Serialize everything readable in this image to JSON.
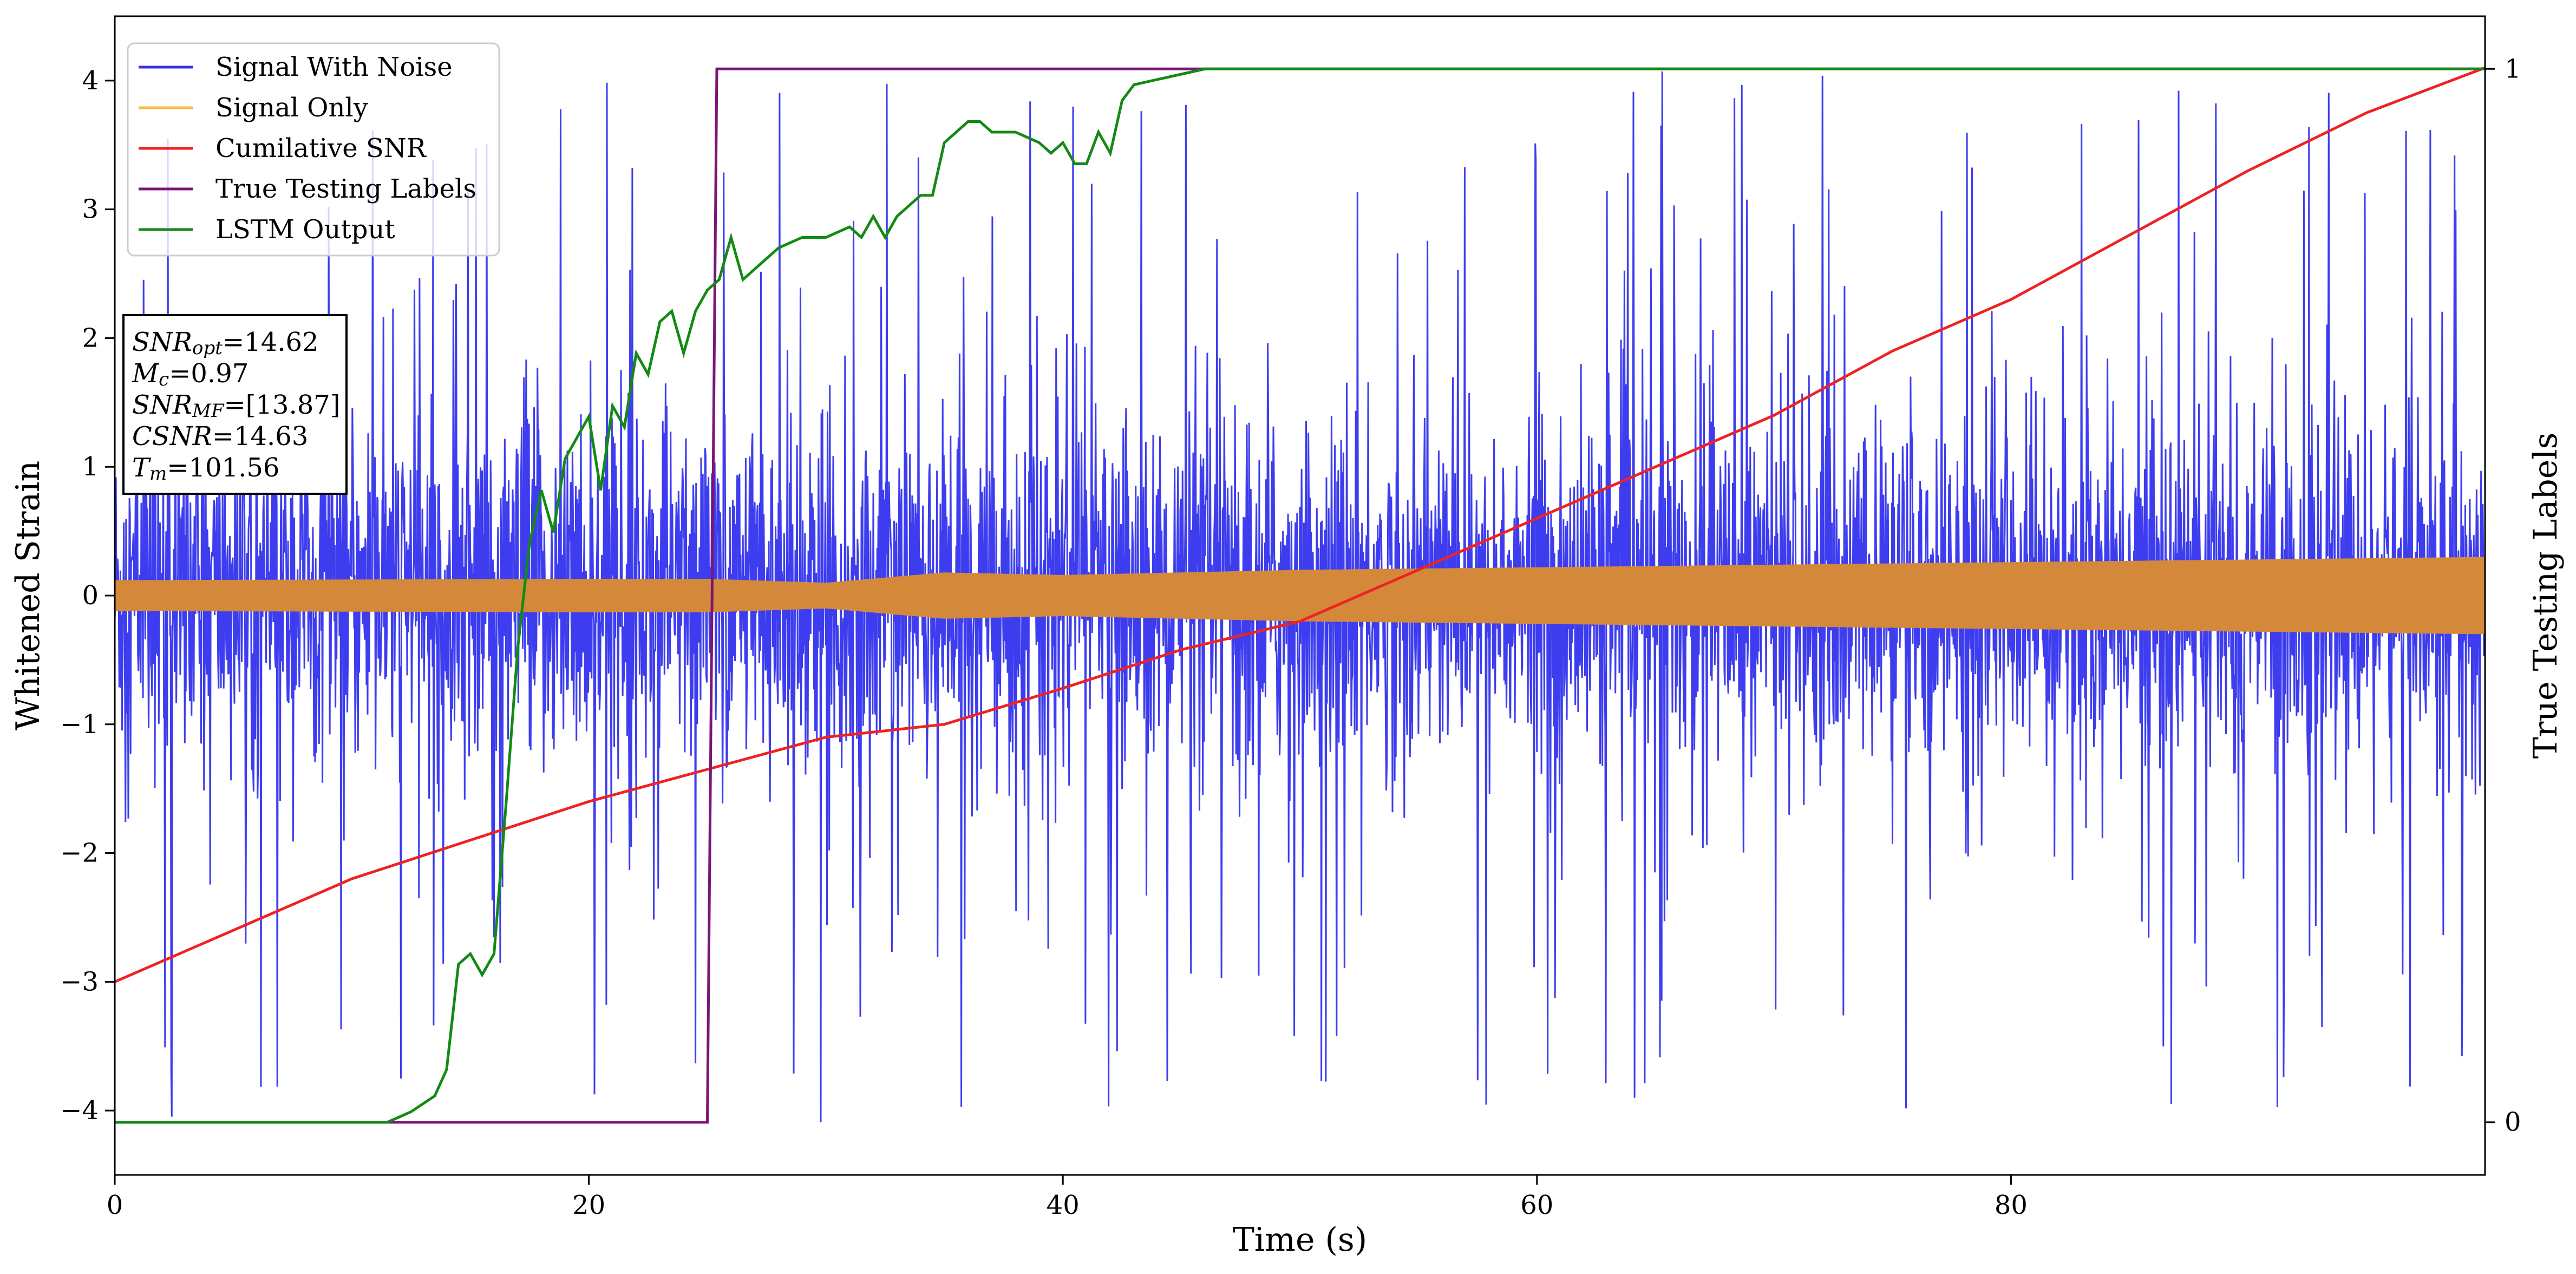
{
  "chart_data": {
    "type": "line",
    "xlabel": "Time (s)",
    "ylabel": "Whitened Strain",
    "y2label": "True Testing Labels",
    "xlim": [
      0,
      100
    ],
    "ylim": [
      -4.5,
      4.5
    ],
    "y2lim": [
      -0.05,
      1.05
    ],
    "x_ticks": [
      0,
      20,
      40,
      60,
      80
    ],
    "y_ticks": [
      -4,
      -3,
      -2,
      -1,
      0,
      1,
      2,
      3,
      4
    ],
    "y2_ticks": [
      0,
      1
    ],
    "legend_position": "top-left",
    "colors": {
      "signal_with_noise": "#3333ee",
      "signal_only": "#d4893a",
      "signal_only_legend": "#ffb84d",
      "cumulative_snr": "#ee2222",
      "true_labels": "#7b1577",
      "lstm_output": "#138a13"
    },
    "series": [
      {
        "name": "Signal With Noise",
        "axis": "left",
        "kind": "noise",
        "typical_envelope": 1.2,
        "peak_envelope": 4.1
      },
      {
        "name": "Signal Only",
        "axis": "left",
        "kind": "band",
        "x": [
          0,
          20,
          25,
          30,
          35,
          40,
          50,
          60,
          70,
          80,
          90,
          100
        ],
        "amplitude": [
          0.12,
          0.13,
          0.13,
          0.1,
          0.18,
          0.16,
          0.2,
          0.22,
          0.24,
          0.26,
          0.28,
          0.3
        ]
      },
      {
        "name": "Cumilative SNR",
        "axis": "left",
        "x": [
          0,
          10,
          20,
          25,
          30,
          35,
          40,
          45,
          50,
          55,
          60,
          65,
          70,
          75,
          80,
          85,
          90,
          95,
          100
        ],
        "y": [
          -3.0,
          -2.2,
          -1.6,
          -1.35,
          -1.1,
          -1.0,
          -0.72,
          -0.42,
          -0.2,
          0.2,
          0.6,
          1.0,
          1.4,
          1.9,
          2.3,
          2.8,
          3.3,
          3.75,
          4.1
        ]
      },
      {
        "name": "True Testing Labels",
        "axis": "right",
        "x": [
          0,
          25.0,
          25.4,
          100
        ],
        "y": [
          0,
          0,
          1,
          1
        ]
      },
      {
        "name": "LSTM Output",
        "axis": "right",
        "x": [
          0,
          11.5,
          12.5,
          13.5,
          14,
          14.5,
          15.0,
          15.5,
          16.0,
          16.5,
          17.0,
          17.5,
          18.0,
          18.5,
          19.0,
          19.5,
          20.0,
          20.5,
          21.0,
          21.5,
          22.0,
          22.5,
          23.0,
          23.5,
          24.0,
          24.5,
          25.0,
          25.5,
          26.0,
          26.5,
          27.0,
          28.0,
          29.0,
          30.0,
          31.0,
          31.5,
          32.0,
          32.5,
          33.0,
          34.0,
          34.5,
          35.0,
          36.0,
          36.5,
          37.0,
          38.0,
          39.0,
          39.5,
          40.0,
          40.5,
          41.0,
          41.5,
          42.0,
          42.5,
          43.0,
          44.0,
          45.0,
          46.0,
          47.0,
          48.0,
          50.0,
          55.0,
          60.0,
          100.0
        ],
        "y": [
          0,
          0,
          0.01,
          0.025,
          0.05,
          0.15,
          0.16,
          0.14,
          0.16,
          0.3,
          0.45,
          0.55,
          0.6,
          0.56,
          0.63,
          0.65,
          0.67,
          0.6,
          0.68,
          0.66,
          0.73,
          0.71,
          0.76,
          0.77,
          0.73,
          0.77,
          0.79,
          0.8,
          0.84,
          0.8,
          0.81,
          0.83,
          0.84,
          0.84,
          0.85,
          0.84,
          0.86,
          0.84,
          0.86,
          0.88,
          0.88,
          0.93,
          0.95,
          0.95,
          0.94,
          0.94,
          0.93,
          0.92,
          0.93,
          0.91,
          0.91,
          0.94,
          0.92,
          0.97,
          0.985,
          0.99,
          0.995,
          1.0,
          1.0,
          1.0,
          1.0,
          1.0,
          1.0,
          1.0
        ]
      }
    ],
    "annotation": {
      "lines": [
        {
          "base": "SNR",
          "sub": "opt",
          "value": "=14.62"
        },
        {
          "base": "M",
          "sub": "c",
          "value": "=0.97"
        },
        {
          "base": "SNR",
          "sub": "MF",
          "value": "=[13.87]"
        },
        {
          "base": "CSNR",
          "sub": "",
          "value": "=14.63"
        },
        {
          "base": "T",
          "sub": "m",
          "value": "=101.56"
        }
      ]
    }
  }
}
